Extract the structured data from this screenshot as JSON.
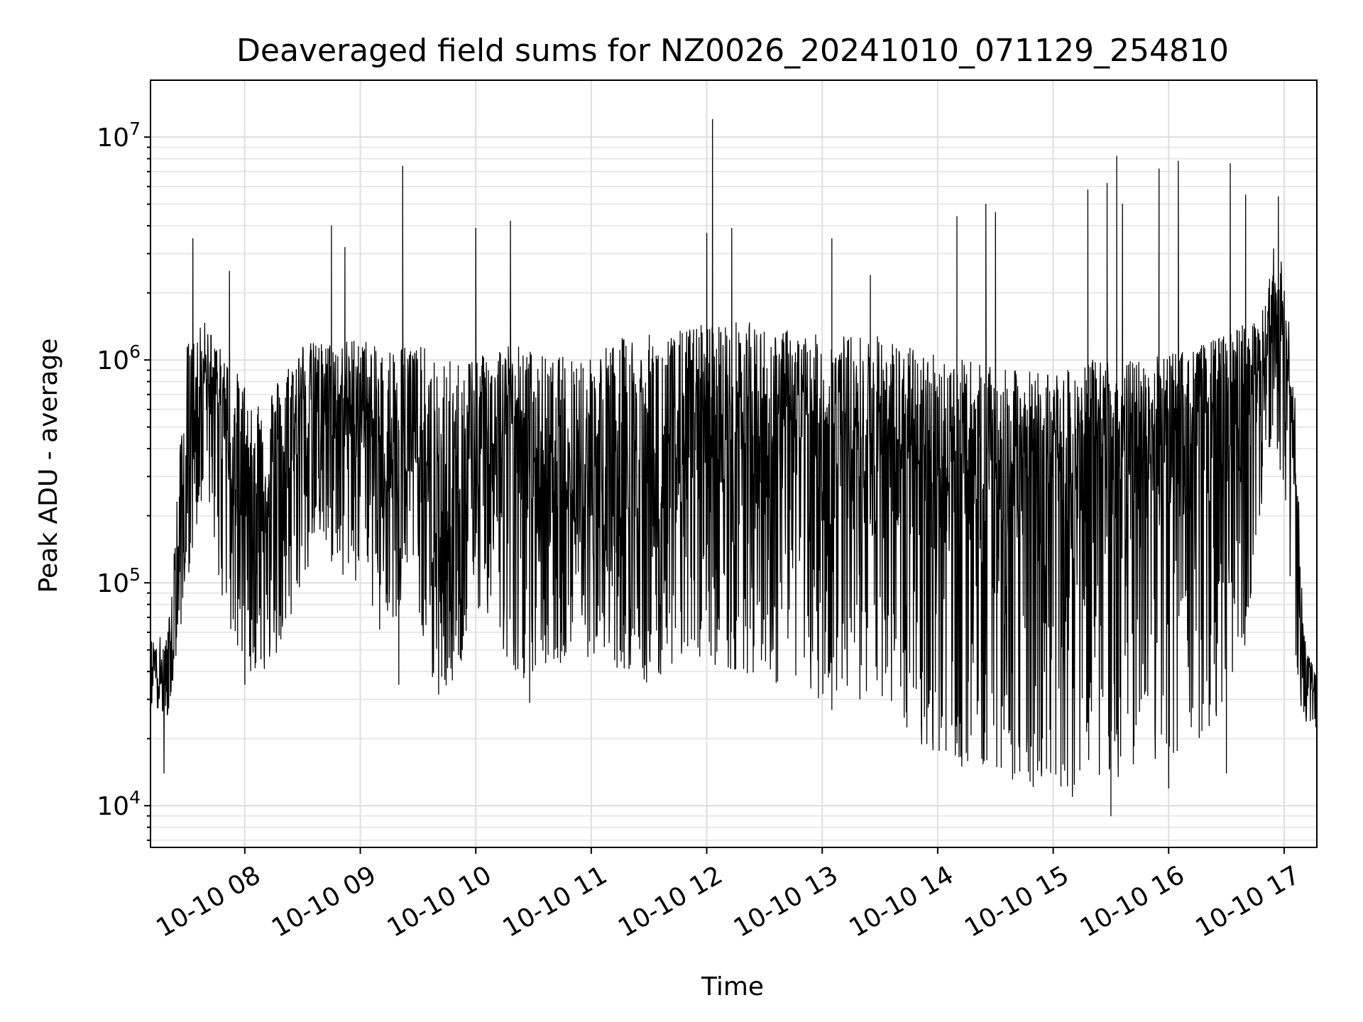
{
  "chart_data": {
    "type": "line",
    "title": "Deaveraged field sums for NZ0026_20241010_071129_254810",
    "xlabel": "Time",
    "ylabel": "Peak ADU - average",
    "yscale": "log",
    "grid": true,
    "line_color": "#000000",
    "xlim": [
      "2024-10-10 07:11",
      "2024-10-10 17:17"
    ],
    "ylim": [
      6500,
      18000000
    ],
    "x_ticks": [
      "10-10 08",
      "10-10 09",
      "10-10 10",
      "10-10 11",
      "10-10 12",
      "10-10 13",
      "10-10 14",
      "10-10 15",
      "10-10 16",
      "10-10 17"
    ],
    "y_ticks": [
      {
        "value": 10000,
        "base": "10",
        "exp": "4"
      },
      {
        "value": 100000,
        "base": "10",
        "exp": "5"
      },
      {
        "value": 1000000,
        "base": "10",
        "exp": "6"
      },
      {
        "value": 10000000,
        "base": "10",
        "exp": "7"
      }
    ],
    "series": [
      {
        "name": "",
        "envelope": {
          "x": [
            "07:11",
            "07:20",
            "07:30",
            "07:40",
            "07:48",
            "07:55",
            "08:00",
            "08:10",
            "08:20",
            "08:30",
            "08:40",
            "08:50",
            "09:00",
            "09:10",
            "09:20",
            "09:30",
            "09:40",
            "09:50",
            "10:00",
            "10:10",
            "10:20",
            "10:30",
            "10:40",
            "10:50",
            "11:00",
            "11:10",
            "11:20",
            "11:30",
            "11:40",
            "11:50",
            "12:00",
            "12:10",
            "12:20",
            "12:30",
            "12:40",
            "12:50",
            "13:00",
            "13:10",
            "13:20",
            "13:30",
            "13:40",
            "13:50",
            "14:00",
            "14:10",
            "14:20",
            "14:30",
            "14:40",
            "14:50",
            "15:00",
            "15:10",
            "15:20",
            "15:30",
            "15:40",
            "15:50",
            "16:00",
            "16:10",
            "16:20",
            "16:30",
            "16:40",
            "16:50",
            "16:55",
            "17:00",
            "17:05",
            "17:10",
            "17:17"
          ],
          "median": [
            45000,
            32000,
            300000,
            900000,
            500000,
            300000,
            250000,
            200000,
            280000,
            600000,
            600000,
            500000,
            600000,
            300000,
            350000,
            400000,
            100000,
            150000,
            350000,
            300000,
            400000,
            300000,
            250000,
            300000,
            200000,
            250000,
            350000,
            200000,
            300000,
            350000,
            400000,
            350000,
            400000,
            350000,
            400000,
            350000,
            350000,
            350000,
            300000,
            300000,
            300000,
            300000,
            300000,
            250000,
            250000,
            250000,
            300000,
            300000,
            300000,
            250000,
            300000,
            300000,
            300000,
            300000,
            400000,
            400000,
            500000,
            500000,
            600000,
            800000,
            1200000,
            1000000,
            400000,
            40000,
            35000
          ],
          "high": [
            55000,
            60000,
            1200000,
            1500000,
            1100000,
            900000,
            800000,
            700000,
            900000,
            1200000,
            1200000,
            1200000,
            1300000,
            1100000,
            1200000,
            1200000,
            1000000,
            1000000,
            1100000,
            1200000,
            1200000,
            1100000,
            1000000,
            1100000,
            1100000,
            1200000,
            1300000,
            1300000,
            1300000,
            1400000,
            1500000,
            1500000,
            1500000,
            1400000,
            1400000,
            1300000,
            1300000,
            1300000,
            1300000,
            1300000,
            1200000,
            1100000,
            1100000,
            1000000,
            1000000,
            900000,
            900000,
            900000,
            900000,
            900000,
            1000000,
            1000000,
            1000000,
            1000000,
            1100000,
            1100000,
            1200000,
            1300000,
            1500000,
            1700000,
            3500000,
            2500000,
            1000000,
            60000,
            40000
          ],
          "low": [
            28000,
            25000,
            100000,
            300000,
            80000,
            50000,
            40000,
            40000,
            50000,
            100000,
            150000,
            100000,
            100000,
            60000,
            60000,
            70000,
            30000,
            35000,
            80000,
            60000,
            40000,
            35000,
            40000,
            50000,
            45000,
            40000,
            40000,
            35000,
            40000,
            45000,
            45000,
            40000,
            40000,
            35000,
            35000,
            30000,
            30000,
            30000,
            30000,
            25000,
            22000,
            18000,
            16000,
            15000,
            15000,
            14000,
            13000,
            12000,
            12000,
            12000,
            13000,
            13000,
            14000,
            14000,
            15000,
            18000,
            20000,
            30000,
            50000,
            250000,
            500000,
            200000,
            30000,
            25000,
            20000
          ]
        },
        "spikes": [
          {
            "x": "07:18",
            "y": 14000
          },
          {
            "x": "07:33",
            "y": 3500000
          },
          {
            "x": "07:52",
            "y": 2500000
          },
          {
            "x": "08:00",
            "y": 35000
          },
          {
            "x": "08:45",
            "y": 4000000
          },
          {
            "x": "08:52",
            "y": 3200000
          },
          {
            "x": "09:20",
            "y": 35000
          },
          {
            "x": "09:22",
            "y": 7400000
          },
          {
            "x": "10:00",
            "y": 3900000
          },
          {
            "x": "10:18",
            "y": 4200000
          },
          {
            "x": "10:28",
            "y": 29000
          },
          {
            "x": "12:00",
            "y": 3700000
          },
          {
            "x": "12:03",
            "y": 12000000
          },
          {
            "x": "12:13",
            "y": 3900000
          },
          {
            "x": "13:05",
            "y": 3500000
          },
          {
            "x": "13:05",
            "y": 27000
          },
          {
            "x": "13:25",
            "y": 2400000
          },
          {
            "x": "14:10",
            "y": 4400000
          },
          {
            "x": "14:25",
            "y": 5000000
          },
          {
            "x": "14:30",
            "y": 4600000
          },
          {
            "x": "14:40",
            "y": 14000
          },
          {
            "x": "15:10",
            "y": 11000
          },
          {
            "x": "15:18",
            "y": 5800000
          },
          {
            "x": "15:28",
            "y": 6200000
          },
          {
            "x": "15:30",
            "y": 9000
          },
          {
            "x": "15:33",
            "y": 8200000
          },
          {
            "x": "15:36",
            "y": 5000000
          },
          {
            "x": "15:55",
            "y": 7200000
          },
          {
            "x": "16:00",
            "y": 12000
          },
          {
            "x": "16:05",
            "y": 7800000
          },
          {
            "x": "16:30",
            "y": 14000
          },
          {
            "x": "16:32",
            "y": 7600000
          },
          {
            "x": "16:40",
            "y": 5500000
          },
          {
            "x": "16:57",
            "y": 5400000
          }
        ]
      }
    ]
  }
}
